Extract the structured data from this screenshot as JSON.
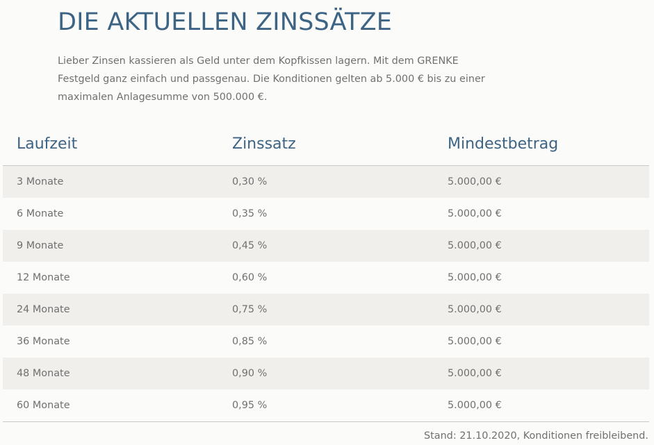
{
  "heading": "DIE AKTUELLEN ZINSSÄTZE",
  "intro": "Lieber Zinsen kassieren als Geld unter dem Kopfkissen lagern. Mit dem GRENKE Festgeld ganz einfach und passgenau. Die Konditionen gelten ab 5.000 € bis zu einer maximalen Anlagesumme von 500.000 €.",
  "table": {
    "headers": [
      "Laufzeit",
      "Zinssatz",
      "Mindestbetrag"
    ],
    "rows": [
      [
        "3 Monate",
        "0,30 %",
        "5.000,00 €"
      ],
      [
        "6 Monate",
        "0,35 %",
        "5.000,00 €"
      ],
      [
        "9 Monate",
        "0,45 %",
        "5.000,00 €"
      ],
      [
        "12 Monate",
        "0,60 %",
        "5.000,00 €"
      ],
      [
        "24 Monate",
        "0,75 %",
        "5.000,00 €"
      ],
      [
        "36 Monate",
        "0,85 %",
        "5.000,00 €"
      ],
      [
        "48 Monate",
        "0,90 %",
        "5.000,00 €"
      ],
      [
        "60 Monate",
        "0,95 %",
        "5.000,00 €"
      ]
    ]
  },
  "footnote": "Stand: 21.10.2020, Konditionen freibleibend.",
  "colors": {
    "heading": "#3d6484",
    "text": "#707070",
    "row_alt": "#f0efec",
    "background": "#fbfbf9"
  }
}
